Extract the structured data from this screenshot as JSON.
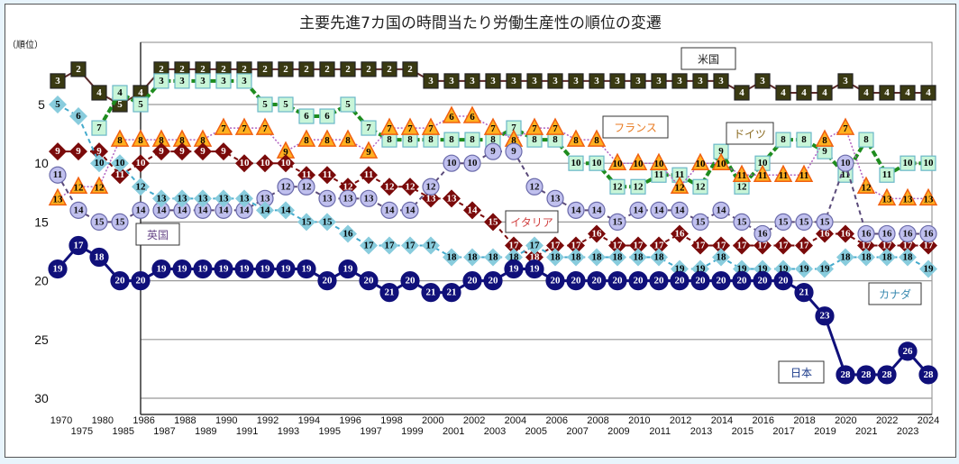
{
  "chart_data": {
    "type": "line",
    "title": "主要先進7カ国の時間当たり労働生産性の順位の変遷",
    "ylabel": "（順位）",
    "xlabel": "",
    "ylim": [
      1,
      31
    ],
    "y_inverted": true,
    "yticks": [
      5,
      10,
      15,
      20,
      25,
      30
    ],
    "grid": true,
    "categories": [
      "1970",
      "1975",
      "1980",
      "1985",
      "1986",
      "1987",
      "1988",
      "1989",
      "1990",
      "1991",
      "1992",
      "1993",
      "1994",
      "1995",
      "1996",
      "1997",
      "1998",
      "1999",
      "2000",
      "2001",
      "2002",
      "2003",
      "2004",
      "2005",
      "2006",
      "2007",
      "2008",
      "2009",
      "2010",
      "2011",
      "2012",
      "2013",
      "2014",
      "2015",
      "2016",
      "2017",
      "2018",
      "2019",
      "2020",
      "2021",
      "2022",
      "2023",
      "2024"
    ],
    "series": [
      {
        "name": "米国",
        "marker": "square",
        "color": "#3a3a12",
        "line_color": "#5a2a2a",
        "line_style": "solid",
        "values": [
          3,
          2,
          4,
          5,
          4,
          2,
          2,
          2,
          2,
          2,
          2,
          2,
          2,
          2,
          2,
          2,
          2,
          2,
          3,
          3,
          3,
          3,
          3,
          3,
          3,
          3,
          3,
          3,
          3,
          3,
          3,
          3,
          3,
          4,
          3,
          4,
          4,
          4,
          3,
          4,
          4,
          4,
          4
        ]
      },
      {
        "name": "ドイツ",
        "marker": "square",
        "color": "#c8f5d8",
        "line_color": "#1e8c1e",
        "line_style": "dashed-thick",
        "values": [
          null,
          null,
          7,
          4,
          5,
          3,
          3,
          3,
          3,
          3,
          5,
          5,
          6,
          6,
          5,
          7,
          8,
          8,
          8,
          8,
          8,
          8,
          7,
          8,
          8,
          10,
          10,
          12,
          12,
          11,
          11,
          12,
          9,
          12,
          10,
          8,
          8,
          9,
          11,
          8,
          11,
          10,
          10
        ]
      },
      {
        "name": "フランス",
        "marker": "triangle",
        "color": "#ffb020",
        "line_color": "#b060c0",
        "line_style": "dotted",
        "values": [
          13,
          12,
          12,
          8,
          8,
          8,
          8,
          8,
          7,
          7,
          7,
          9,
          8,
          8,
          8,
          9,
          7,
          7,
          7,
          6,
          6,
          7,
          8,
          7,
          7,
          8,
          8,
          10,
          10,
          10,
          12,
          10,
          10,
          11,
          11,
          11,
          11,
          8,
          7,
          12,
          13,
          13,
          13
        ]
      },
      {
        "name": "イタリア",
        "marker": "diamond",
        "color": "#7a0a0a",
        "line_color": "#7a0a0a",
        "line_style": "dashed",
        "values": [
          9,
          9,
          9,
          11,
          10,
          9,
          9,
          9,
          9,
          10,
          10,
          10,
          11,
          11,
          12,
          11,
          12,
          12,
          13,
          13,
          14,
          15,
          17,
          18,
          17,
          17,
          16,
          17,
          17,
          17,
          16,
          17,
          17,
          17,
          17,
          17,
          17,
          16,
          16,
          17,
          17,
          17,
          17
        ]
      },
      {
        "name": "英国",
        "marker": "circle",
        "color": "#c0c0ee",
        "line_color": "#5a4a7a",
        "line_style": "dashed",
        "values": [
          11,
          14,
          15,
          15,
          14,
          14,
          14,
          14,
          14,
          14,
          13,
          12,
          12,
          13,
          13,
          13,
          14,
          14,
          12,
          10,
          10,
          9,
          9,
          12,
          13,
          14,
          14,
          15,
          14,
          14,
          14,
          15,
          14,
          15,
          16,
          15,
          15,
          15,
          10,
          16,
          16,
          16,
          16
        ]
      },
      {
        "name": "カナダ",
        "marker": "diamond",
        "color": "#88ccdd",
        "line_color": "#44aacc",
        "line_style": "dashed",
        "values": [
          5,
          6,
          10,
          10,
          12,
          13,
          13,
          13,
          13,
          13,
          14,
          14,
          15,
          15,
          16,
          17,
          17,
          17,
          17,
          18,
          18,
          18,
          18,
          17,
          18,
          18,
          18,
          18,
          18,
          18,
          19,
          19,
          18,
          19,
          19,
          19,
          19,
          19,
          18,
          18,
          18,
          18,
          19
        ]
      },
      {
        "name": "日本",
        "marker": "circle",
        "color": "#10107a",
        "line_color": "#10107a",
        "line_style": "solid-thick",
        "values": [
          19,
          17,
          18,
          20,
          20,
          19,
          19,
          19,
          19,
          19,
          19,
          19,
          19,
          20,
          19,
          20,
          21,
          20,
          21,
          21,
          20,
          20,
          19,
          19,
          20,
          20,
          20,
          20,
          20,
          20,
          20,
          20,
          20,
          20,
          20,
          20,
          21,
          23,
          28,
          28,
          28,
          26,
          28
        ]
      }
    ],
    "legend": [
      {
        "name": "米国",
        "placement": "top-right"
      },
      {
        "name": "フランス",
        "placement": "upper-right-center"
      },
      {
        "name": "ドイツ",
        "placement": "upper-right"
      },
      {
        "name": "イタリア",
        "placement": "center"
      },
      {
        "name": "英国",
        "placement": "left"
      },
      {
        "name": "カナダ",
        "placement": "right"
      },
      {
        "name": "日本",
        "placement": "bottom-right"
      }
    ],
    "legend_text_colors": {
      "米国": "#222222",
      "フランス": "#e87a20",
      "ドイツ": "#8a6a20",
      "イタリア": "#d04040",
      "英国": "#6a4a8a",
      "カナダ": "#3a8ab0",
      "日本": "#1a3a8a"
    }
  }
}
